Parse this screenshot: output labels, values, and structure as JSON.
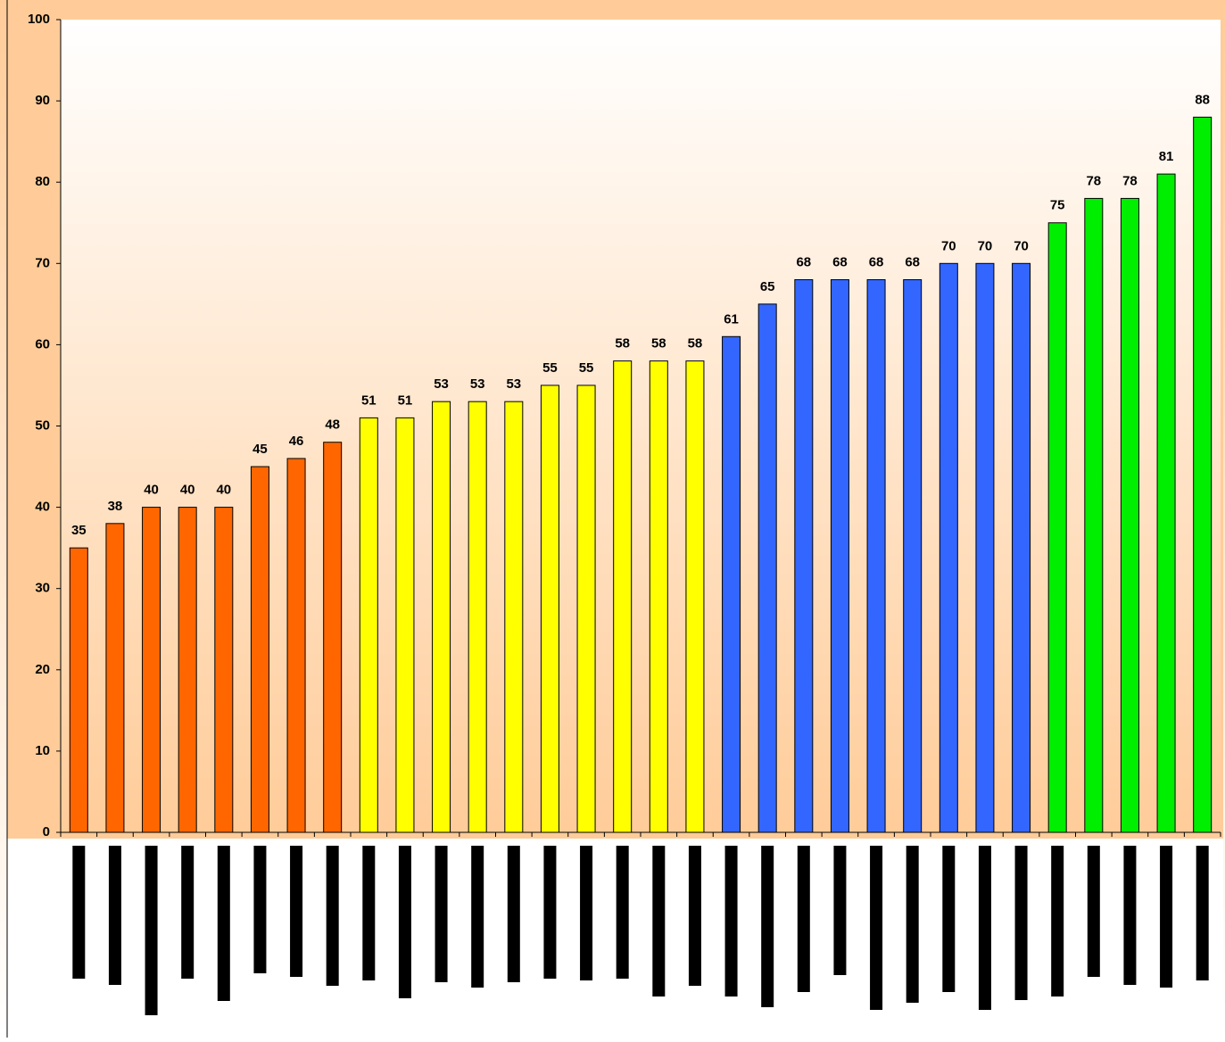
{
  "chart_data": {
    "type": "bar",
    "categories": [
      null,
      null,
      null,
      null,
      null,
      null,
      null,
      null,
      null,
      null,
      null,
      null,
      null,
      null,
      null,
      null,
      null,
      null,
      null,
      null,
      null,
      null,
      null,
      null,
      null,
      null,
      null,
      null,
      null,
      null,
      null,
      null
    ],
    "values": [
      35,
      38,
      40,
      40,
      40,
      45,
      46,
      48,
      51,
      51,
      53,
      53,
      53,
      55,
      55,
      58,
      58,
      58,
      61,
      65,
      68,
      68,
      68,
      68,
      70,
      70,
      70,
      75,
      78,
      78,
      81,
      88
    ],
    "colors": [
      "#ff6600",
      "#ff6600",
      "#ff6600",
      "#ff6600",
      "#ff6600",
      "#ff6600",
      "#ff6600",
      "#ff6600",
      "#ffff00",
      "#ffff00",
      "#ffff00",
      "#ffff00",
      "#ffff00",
      "#ffff00",
      "#ffff00",
      "#ffff00",
      "#ffff00",
      "#ffff00",
      "#3366ff",
      "#3366ff",
      "#3366ff",
      "#3366ff",
      "#3366ff",
      "#3366ff",
      "#3366ff",
      "#3366ff",
      "#3366ff",
      "#00ee00",
      "#00ee00",
      "#00ee00",
      "#00ee00",
      "#00ee00"
    ],
    "ylim": [
      0,
      100
    ],
    "yticks": [
      0,
      10,
      20,
      30,
      40,
      50,
      60,
      70,
      80,
      90,
      100
    ],
    "grid": false
  }
}
